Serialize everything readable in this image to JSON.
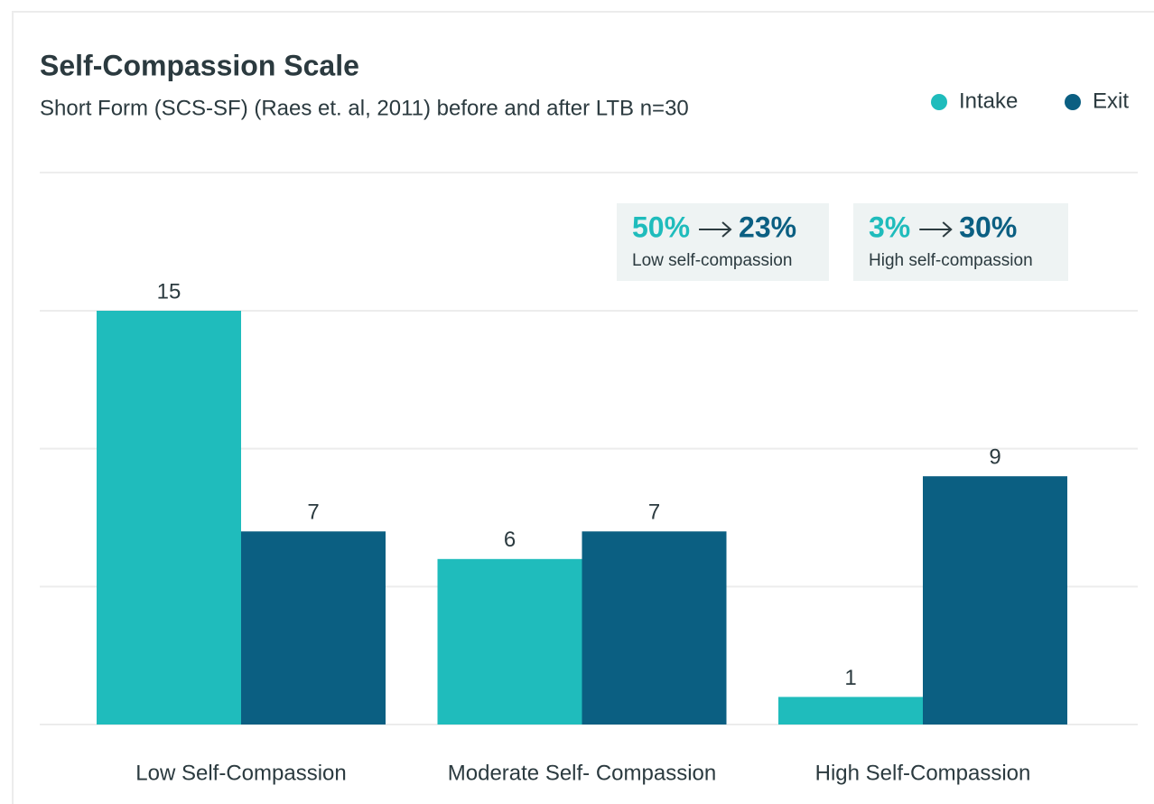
{
  "chart_data": {
    "type": "bar",
    "title": "Self-Compassion Scale",
    "subtitle": "Short Form (SCS-SF) (Raes et. al, 2011) before and after LTB n=30",
    "categories": [
      "Low Self-Compassion",
      "Moderate Self- Compassion",
      "High Self-Compassion"
    ],
    "series": [
      {
        "name": "Intake",
        "color": "#1fbcbc",
        "values": [
          15,
          6,
          1
        ]
      },
      {
        "name": "Exit",
        "color": "#0b5f82",
        "values": [
          7,
          7,
          9
        ]
      }
    ],
    "ylim": [
      0,
      15
    ],
    "yticks": [
      0,
      5,
      10,
      15
    ],
    "grid": true,
    "legend": "top-right",
    "annotations": [
      {
        "from": "50%",
        "to": "23%",
        "label": "Low self-compassion"
      },
      {
        "from": "3%",
        "to": "30%",
        "label": "High self-compassion"
      }
    ]
  }
}
